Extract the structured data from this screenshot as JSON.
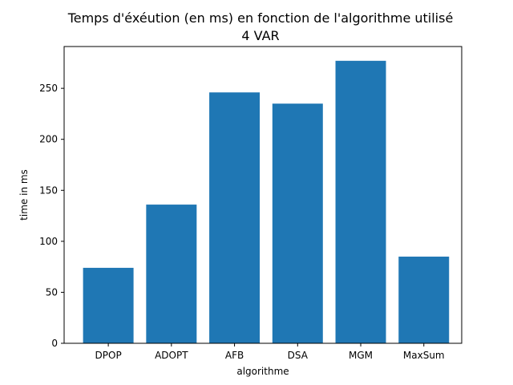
{
  "chart_data": {
    "type": "bar",
    "title": "Temps d'éxéution (en ms) en fonction de l'algorithme utilisé",
    "subtitle": "4 VAR",
    "xlabel": "algorithme",
    "ylabel": "time in ms",
    "categories": [
      "DPOP",
      "ADOPT",
      "AFB",
      "DSA",
      "MGM",
      "MaxSum"
    ],
    "values": [
      74,
      136,
      246,
      235,
      277,
      85
    ],
    "ylim": [
      0,
      291
    ],
    "yticks": [
      0,
      50,
      100,
      150,
      200,
      250
    ],
    "bar_color": "#1f77b4",
    "grid": false,
    "legend": "none"
  }
}
